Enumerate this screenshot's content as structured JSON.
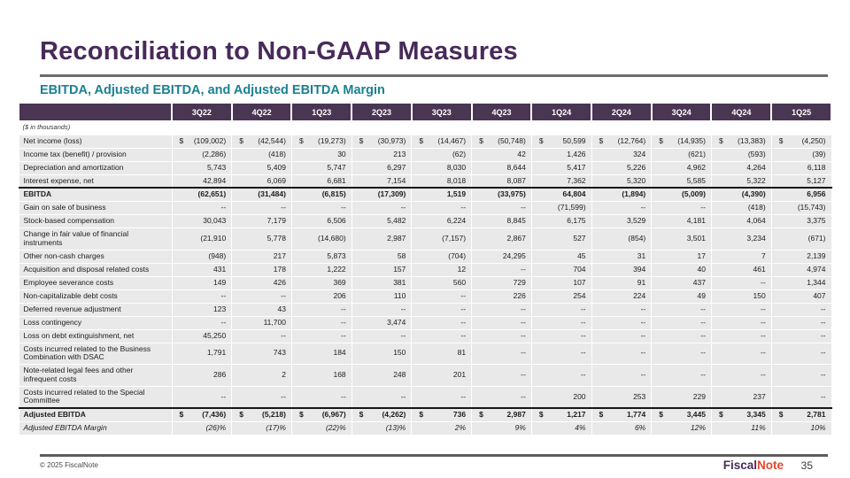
{
  "slide": {
    "title": "Reconciliation to Non-GAAP Measures",
    "subtitle": "EBITDA, Adjusted EBITDA, and Adjusted EBITDA Margin",
    "units_note": "($ in thousands)",
    "footer_copyright": "© 2025 FiscalNote",
    "page_number": "35",
    "logo": {
      "part1": "Fiscal",
      "part2": "Note"
    }
  },
  "colors": {
    "title": "#482a5a",
    "subtitle_teal": "#1a8191",
    "header_bg": "#4a3553",
    "row_gray": "#e9e9e9",
    "logo_accent": "#e8472b"
  },
  "table": {
    "columns": [
      "3Q22",
      "4Q22",
      "1Q23",
      "2Q23",
      "3Q23",
      "4Q23",
      "1Q24",
      "2Q24",
      "3Q24",
      "4Q24",
      "1Q25"
    ],
    "rows": [
      {
        "label": "Net income (loss)",
        "dollar": true,
        "values": [
          "(109,002)",
          "(42,544)",
          "(19,273)",
          "(30,973)",
          "(14,467)",
          "(50,748)",
          "50,599",
          "(12,764)",
          "(14,935)",
          "(13,383)",
          "(4,250)"
        ]
      },
      {
        "label": "Income tax (benefit) / provision",
        "values": [
          "(2,286)",
          "(418)",
          "30",
          "213",
          "(62)",
          "42",
          "1,426",
          "324",
          "(621)",
          "(593)",
          "(39)"
        ]
      },
      {
        "label": "Depreciation and amortization",
        "values": [
          "5,743",
          "5,409",
          "5,747",
          "6,297",
          "8,030",
          "8,644",
          "5,417",
          "5,226",
          "4,962",
          "4,264",
          "6,118"
        ]
      },
      {
        "label": "Interest expense, net",
        "values": [
          "42,894",
          "6,069",
          "6,681",
          "7,154",
          "8,018",
          "8,087",
          "7,362",
          "5,320",
          "5,585",
          "5,322",
          "5,127"
        ]
      },
      {
        "label": "EBITDA",
        "style": "bold",
        "top_rule": true,
        "values": [
          "(62,651)",
          "(31,484)",
          "(6,815)",
          "(17,309)",
          "1,519",
          "(33,975)",
          "64,804",
          "(1,894)",
          "(5,009)",
          "(4,390)",
          "6,956"
        ]
      },
      {
        "label": "Gain on sale of business",
        "values": [
          "--",
          "--",
          "--",
          "--",
          "--",
          "--",
          "(71,599)",
          "--",
          "--",
          "(418)",
          "(15,743)"
        ]
      },
      {
        "label": "Stock-based compensation",
        "values": [
          "30,043",
          "7,179",
          "6,506",
          "5,482",
          "6,224",
          "8,845",
          "6,175",
          "3,529",
          "4,181",
          "4,064",
          "3,375"
        ]
      },
      {
        "label": "Change in fair value of financial instruments",
        "values": [
          "(21,910",
          "5,778",
          "(14,680)",
          "2,987",
          "(7,157)",
          "2,867",
          "527",
          "(854)",
          "3,501",
          "3,234",
          "(671)"
        ]
      },
      {
        "label": "Other non-cash charges",
        "values": [
          "(948)",
          "217",
          "5,873",
          "58",
          "(704)",
          "24,295",
          "45",
          "31",
          "17",
          "7",
          "2,139"
        ]
      },
      {
        "label": "Acquisition and disposal related costs",
        "values": [
          "431",
          "178",
          "1,222",
          "157",
          "12",
          "--",
          "704",
          "394",
          "40",
          "461",
          "4,974"
        ]
      },
      {
        "label": "Employee severance costs",
        "values": [
          "149",
          "426",
          "369",
          "381",
          "560",
          "729",
          "107",
          "91",
          "437",
          "--",
          "1,344"
        ]
      },
      {
        "label": "Non-capitalizable debt costs",
        "values": [
          "--",
          "--",
          "206",
          "110",
          "--",
          "226",
          "254",
          "224",
          "49",
          "150",
          "407"
        ]
      },
      {
        "label": "Deferred revenue adjustment",
        "values": [
          "123",
          "43",
          "--",
          "--",
          "--",
          "--",
          "--",
          "--",
          "--",
          "--",
          "--"
        ]
      },
      {
        "label": "Loss contingency",
        "values": [
          "--",
          "11,700",
          "--",
          "3,474",
          "--",
          "--",
          "--",
          "--",
          "--",
          "--",
          "--"
        ]
      },
      {
        "label": "Loss on debt extinguishment, net",
        "values": [
          "45,250",
          "--",
          "--",
          "--",
          "--",
          "--",
          "--",
          "--",
          "--",
          "--",
          "--"
        ]
      },
      {
        "label": "Costs incurred related to the Business Combination with DSAC",
        "values": [
          "1,791",
          "743",
          "184",
          "150",
          "81",
          "--",
          "--",
          "--",
          "--",
          "--",
          "--"
        ]
      },
      {
        "label": "Note-related legal fees and other infrequent costs",
        "values": [
          "286",
          "2",
          "168",
          "248",
          "201",
          "--",
          "--",
          "--",
          "--",
          "--",
          "--"
        ]
      },
      {
        "label": "Costs incurred related to the Special Committee",
        "values": [
          "--",
          "--",
          "--",
          "--",
          "--",
          "--",
          "200",
          "253",
          "229",
          "237",
          "--"
        ]
      },
      {
        "label": "Adjusted EBITDA",
        "style": "bold",
        "dollar": true,
        "top_rule": true,
        "values": [
          "(7,436)",
          "(5,218)",
          "(6,967)",
          "(4,262)",
          "736",
          "2,987",
          "1,217",
          "1,774",
          "3,445",
          "3,345",
          "2,781"
        ]
      },
      {
        "label": "Adjusted EBITDA Margin",
        "style": "italic",
        "values": [
          "(26)%",
          "(17)%",
          "(22)%",
          "(13)%",
          "2%",
          "9%",
          "4%",
          "6%",
          "12%",
          "11%",
          "10%"
        ]
      }
    ]
  }
}
